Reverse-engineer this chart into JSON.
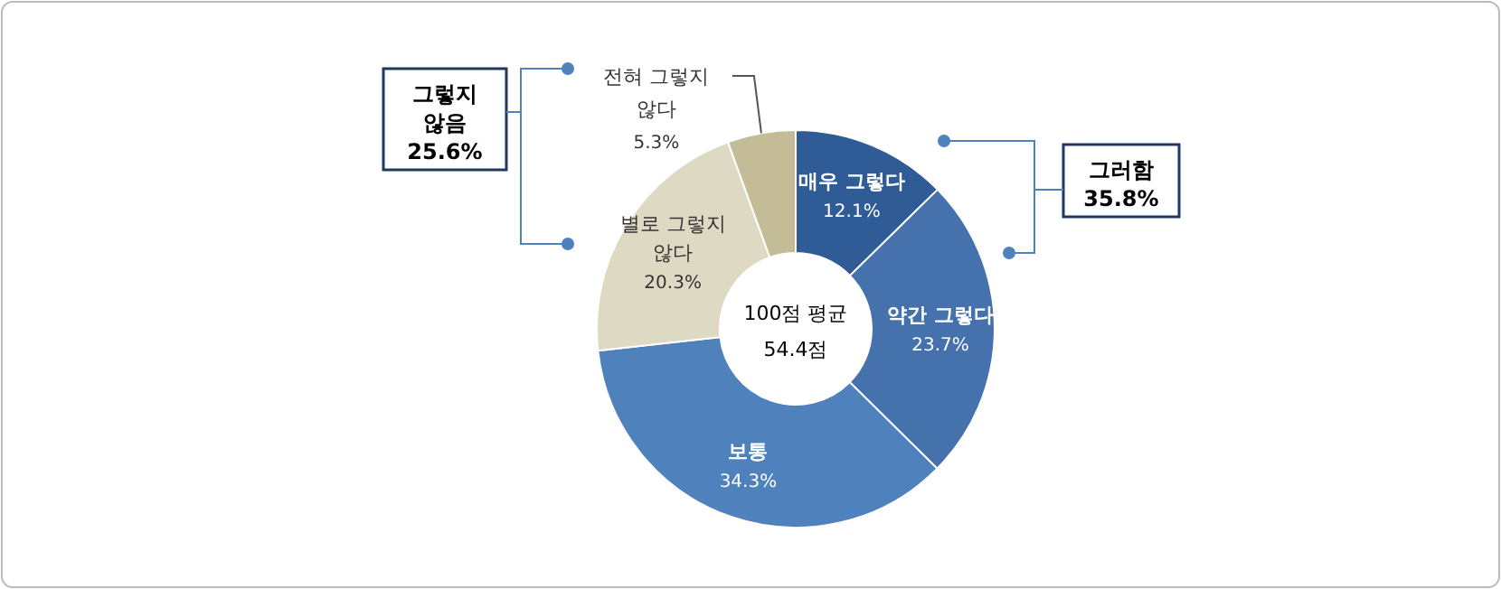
{
  "chart_data": {
    "type": "donut",
    "categories": [
      "매우 그렇다",
      "약간 그렇다",
      "보통",
      "별로 그렇지 않다",
      "전혀 그렇지 않다"
    ],
    "values": [
      12.1,
      23.7,
      34.3,
      20.3,
      5.3
    ],
    "colors": [
      "#2f5b96",
      "#4571ad",
      "#4f81bd",
      "#ddd9c3",
      "#c4bc96"
    ],
    "value_labels": [
      "12.1%",
      "23.7%",
      "34.3%",
      "20.3%",
      "5.3%"
    ],
    "annotations": [
      "100점 평균 54.4점",
      "그렇지 않음 25.6%",
      "그러함 35.8%"
    ]
  }
}
